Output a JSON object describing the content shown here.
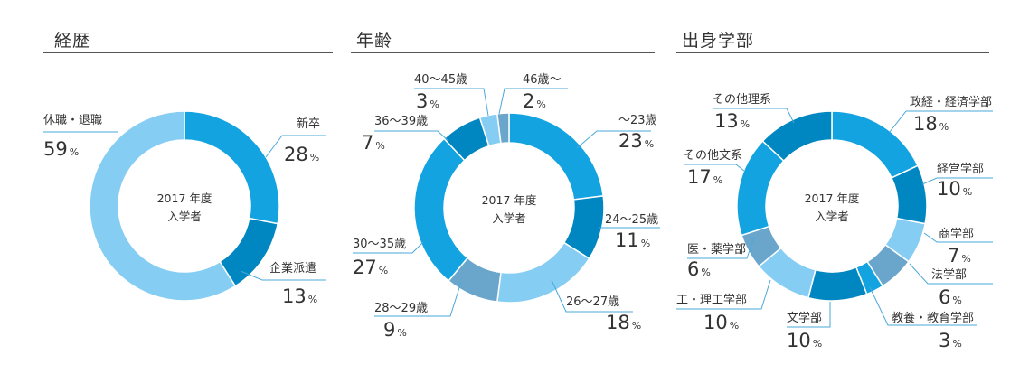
{
  "colors": {
    "c1": "#12a3e0",
    "c2": "#0086c0",
    "c3": "#78c8f0",
    "c4": "#6aa6cc",
    "c5": "#86cdf4",
    "leader": "#4aa8d8"
  },
  "chart_data": [
    {
      "type": "pie",
      "title": "経歴",
      "center_line1": "2017 年度",
      "center_line2": "入学者",
      "unit": "%",
      "slices": [
        {
          "label": "新卒",
          "value": 28,
          "color": "#12a3e0"
        },
        {
          "label": "企業派遣",
          "value": 13,
          "color": "#0086c0"
        },
        {
          "label": "休職・退職",
          "value": 59,
          "color": "#86cdf4"
        }
      ]
    },
    {
      "type": "pie",
      "title": "年齢",
      "center_line1": "2017 年度",
      "center_line2": "入学者",
      "unit": "%",
      "slices": [
        {
          "label": "～23歳",
          "value": 23,
          "color": "#12a3e0"
        },
        {
          "label": "24～25歳",
          "value": 11,
          "color": "#0086c0"
        },
        {
          "label": "26～27歳",
          "value": 18,
          "color": "#86cdf4"
        },
        {
          "label": "28～29歳",
          "value": 9,
          "color": "#6aa6cc"
        },
        {
          "label": "30～35歳",
          "value": 27,
          "color": "#12a3e0"
        },
        {
          "label": "36～39歳",
          "value": 7,
          "color": "#0086c0"
        },
        {
          "label": "40～45歳",
          "value": 3,
          "color": "#86cdf4"
        },
        {
          "label": "46歳～",
          "value": 2,
          "color": "#6aa6cc"
        }
      ]
    },
    {
      "type": "pie",
      "title": "出身学部",
      "center_line1": "2017 年度",
      "center_line2": "入学者",
      "unit": "%",
      "slices": [
        {
          "label": "政経・経済学部",
          "value": 18,
          "color": "#12a3e0"
        },
        {
          "label": "経営学部",
          "value": 10,
          "color": "#0086c0"
        },
        {
          "label": "商学部",
          "value": 7,
          "color": "#86cdf4"
        },
        {
          "label": "法学部",
          "value": 6,
          "color": "#6aa6cc"
        },
        {
          "label": "教養・教育学部",
          "value": 3,
          "color": "#12a3e0"
        },
        {
          "label": "文学部",
          "value": 10,
          "color": "#0086c0"
        },
        {
          "label": "工・理工学部",
          "value": 10,
          "color": "#86cdf4"
        },
        {
          "label": "医・薬学部",
          "value": 6,
          "color": "#6aa6cc"
        },
        {
          "label": "その他文系",
          "value": 17,
          "color": "#12a3e0"
        },
        {
          "label": "その他理系",
          "value": 13,
          "color": "#0086c0"
        }
      ]
    }
  ]
}
